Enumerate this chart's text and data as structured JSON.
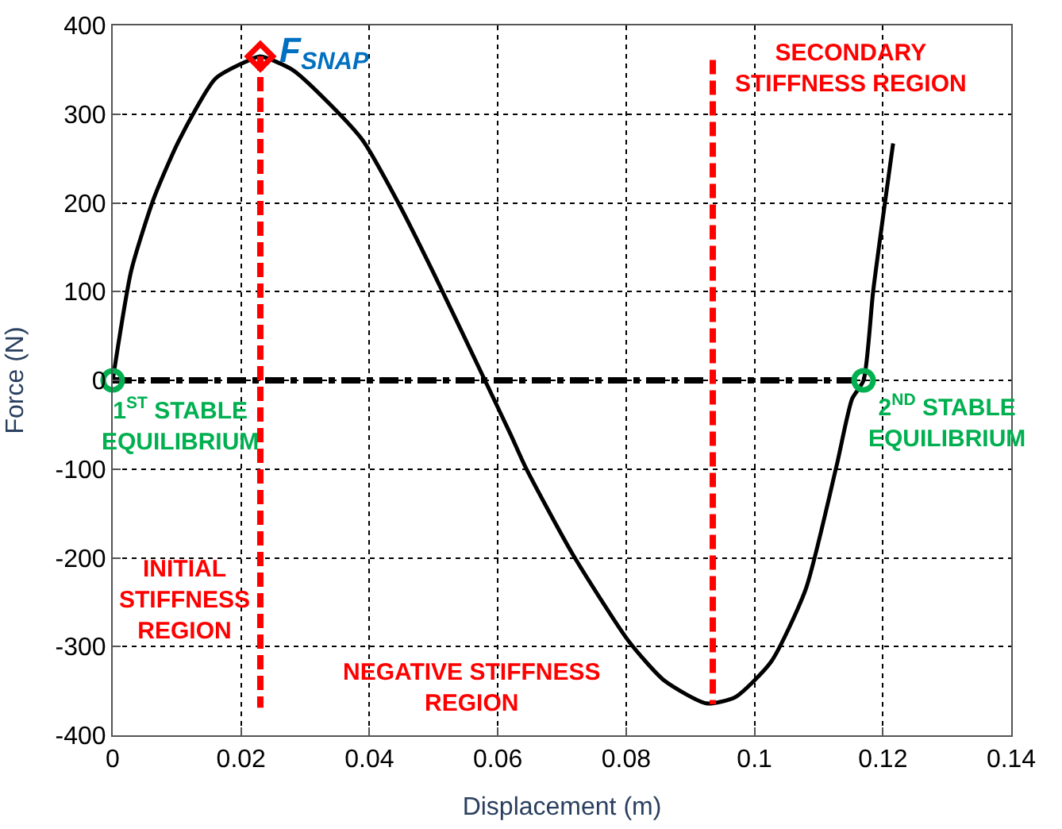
{
  "chart_data": {
    "type": "line",
    "xlabel": "Displacement (m)",
    "ylabel": "Force (N)",
    "xlim": [
      0,
      0.14
    ],
    "xticks": [
      0,
      0.02,
      0.04,
      0.06,
      0.08,
      0.1,
      0.12,
      0.14
    ],
    "ylim": [
      -400,
      400
    ],
    "yticks": [
      -400,
      -300,
      -200,
      -100,
      0,
      100,
      200,
      300,
      400
    ],
    "grid": true,
    "series": [
      {
        "color": "#000000",
        "line_style": "solid",
        "marker": "none",
        "x": [
          0,
          0.0029,
          0.0064,
          0.0103,
          0.016,
          0.0207,
          0.023,
          0.028,
          0.034,
          0.039,
          0.0445,
          0.051,
          0.058,
          0.062,
          0.0644,
          0.0716,
          0.0804,
          0.0859,
          0.0925,
          0.097,
          0.1026,
          0.108,
          0.1128,
          0.1152,
          0.117,
          0.1185,
          0.1216
        ],
        "values": [
          0,
          124,
          205,
          270,
          340,
          359,
          365,
          350,
          310,
          270,
          200,
          106,
          0,
          -61,
          -99,
          -195,
          -294,
          -338,
          -364,
          -357,
          -317,
          -235,
          -96,
          -21,
          0,
          101,
          267
        ]
      },
      {
        "type": "line",
        "color": "#000000",
        "line_style": "dashdot",
        "marker": "none",
        "x": [
          0,
          0.117
        ],
        "values": [
          0,
          0
        ]
      },
      {
        "type": "line",
        "color": "#ff0000",
        "line_style": "dashed",
        "marker": "none",
        "x": [
          0.023,
          0.023
        ],
        "values": [
          365,
          -369
        ]
      },
      {
        "type": "line",
        "color": "#ff0000",
        "line_style": "dashed",
        "marker": "none",
        "x": [
          0.0935,
          0.0935
        ],
        "values": [
          361,
          -365
        ]
      },
      {
        "type": "scatter",
        "color": "#ff0000",
        "marker": "diamond",
        "x": [
          0.023
        ],
        "values": [
          365
        ]
      },
      {
        "type": "scatter",
        "color": "#00b050",
        "marker": "circle",
        "x": [
          0,
          0.117
        ],
        "values": [
          0,
          0
        ]
      }
    ],
    "annotations": [
      {
        "text": "F$_{SNAP}$",
        "x": 0.023,
        "y": 365
      },
      {
        "text": "1$^{ST}$ STABLE\nEQUILIBRIUM",
        "x": 0,
        "y": 0
      },
      {
        "text": "2$^{ND}$ STABLE\nEQUILIBRIUM",
        "x": 0.117,
        "y": 0
      },
      "INITIAL\nSTIFFNESS\nREGION",
      "NEGATIVE STIFFNESS\nREGION",
      "SECONDARY\nSTIFFNESS REGION"
    ]
  }
}
